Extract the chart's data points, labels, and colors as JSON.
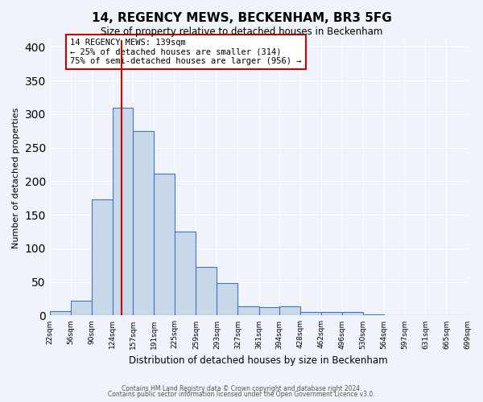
{
  "title": "14, REGENCY MEWS, BECKENHAM, BR3 5FG",
  "subtitle": "Size of property relative to detached houses in Beckenham",
  "xlabel": "Distribution of detached houses by size in Beckenham",
  "ylabel": "Number of detached properties",
  "bar_color": "#c8d8e8",
  "bar_edge_color": "#4472c4",
  "background_color": "#f0f4fa",
  "grid_color": "#ffffff",
  "bin_edges": [
    22,
    56,
    90,
    124,
    157,
    191,
    225,
    259,
    293,
    327,
    361,
    394,
    428,
    462,
    496,
    530,
    564,
    597,
    631,
    665,
    699
  ],
  "bin_labels": [
    "22sqm",
    "56sqm",
    "90sqm",
    "124sqm",
    "157sqm",
    "191sqm",
    "225sqm",
    "259sqm",
    "293sqm",
    "327sqm",
    "361sqm",
    "394sqm",
    "428sqm",
    "462sqm",
    "496sqm",
    "530sqm",
    "564sqm",
    "597sqm",
    "631sqm",
    "665sqm",
    "699sqm"
  ],
  "bar_heights": [
    7,
    22,
    173,
    310,
    275,
    211,
    125,
    72,
    48,
    14,
    12,
    14,
    5,
    5,
    5,
    2,
    1,
    0,
    1,
    0,
    2
  ],
  "property_size": 139,
  "property_line_x": 139,
  "vline_color": "#cc0000",
  "annotation_text": "14 REGENCY MEWS: 139sqm\n← 25% of detached houses are smaller (314)\n75% of semi-detached houses are larger (956) →",
  "annotation_box_color": "#ffffff",
  "annotation_box_edge": "#cc0000",
  "ylim": [
    0,
    410
  ],
  "yticks": [
    0,
    50,
    100,
    150,
    200,
    250,
    300,
    350,
    400
  ],
  "footer1": "Contains HM Land Registry data © Crown copyright and database right 2024.",
  "footer2": "Contains public sector information licensed under the Open Government Licence v3.0."
}
